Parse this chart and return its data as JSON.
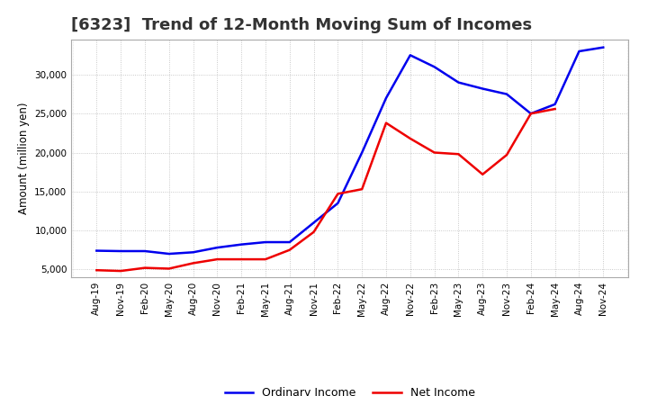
{
  "title": "[6323]  Trend of 12-Month Moving Sum of Incomes",
  "ylabel": "Amount (million yen)",
  "background_color": "#ffffff",
  "plot_background": "#ffffff",
  "ordinary_income_color": "#0000ee",
  "net_income_color": "#ee0000",
  "ordinary_income_label": "Ordinary Income",
  "net_income_label": "Net Income",
  "x_labels": [
    "Aug-19",
    "Nov-19",
    "Feb-20",
    "May-20",
    "Aug-20",
    "Nov-20",
    "Feb-21",
    "May-21",
    "Aug-21",
    "Nov-21",
    "Feb-22",
    "May-22",
    "Aug-22",
    "Nov-22",
    "Feb-23",
    "May-23",
    "Aug-23",
    "Nov-23",
    "Feb-24",
    "May-24",
    "Aug-24",
    "Nov-24"
  ],
  "ordinary_income": [
    7400,
    7350,
    7350,
    7000,
    7200,
    7800,
    8200,
    8500,
    8500,
    11000,
    13500,
    20000,
    27000,
    32500,
    31000,
    29000,
    28200,
    27500,
    25000,
    26200,
    33000,
    33500
  ],
  "net_income": [
    4900,
    4800,
    5200,
    5100,
    5800,
    6300,
    6300,
    6300,
    7500,
    9800,
    14700,
    15300,
    23800,
    21800,
    20000,
    19800,
    17200,
    19700,
    25000,
    25600,
    null,
    null
  ],
  "ylim_min": 4000,
  "ylim_max": 34500,
  "yticks": [
    5000,
    10000,
    15000,
    20000,
    25000,
    30000
  ],
  "line_width": 1.8,
  "title_fontsize": 13,
  "title_color": "#333333",
  "tick_fontsize": 7.5,
  "ylabel_fontsize": 8.5,
  "legend_fontsize": 9
}
